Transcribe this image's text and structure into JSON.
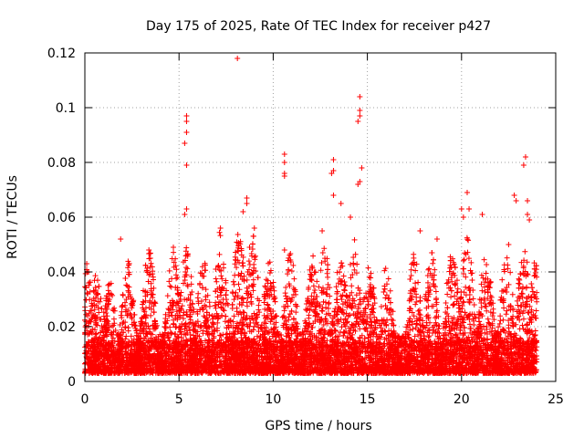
{
  "chart_data": {
    "type": "scatter",
    "title": "Day 175 of 2025, Rate Of TEC Index for receiver p427",
    "xlabel": "GPS time / hours",
    "ylabel": "ROTI / TECUs",
    "xlim": [
      0,
      25
    ],
    "ylim": [
      0,
      0.12
    ],
    "x_ticks": [
      0,
      5,
      10,
      15,
      20,
      25
    ],
    "x_tick_labels": [
      "0",
      "5",
      "10",
      "15",
      "20",
      "25"
    ],
    "y_ticks": [
      0,
      0.02,
      0.04,
      0.06,
      0.08,
      0.1,
      0.12
    ],
    "y_tick_labels": [
      "0",
      "0.02",
      "0.04",
      "0.06",
      "0.08",
      "0.1",
      "0.12"
    ],
    "grid": true,
    "marker": "+",
    "color": "#ff0000",
    "series": [
      {
        "name": "ROTI",
        "description": "dense scatter of ROTI values between ~0.003 and ~0.05 TECU/min from 0 to 24 h",
        "points": [
          [
            8.1,
            0.118
          ],
          [
            14.6,
            0.104
          ],
          [
            14.6,
            0.099
          ],
          [
            14.6,
            0.097
          ],
          [
            14.5,
            0.095
          ],
          [
            5.4,
            0.097
          ],
          [
            5.4,
            0.095
          ],
          [
            5.4,
            0.091
          ],
          [
            5.3,
            0.087
          ],
          [
            5.4,
            0.079
          ],
          [
            10.6,
            0.083
          ],
          [
            10.6,
            0.08
          ],
          [
            10.6,
            0.076
          ],
          [
            10.6,
            0.075
          ],
          [
            13.2,
            0.081
          ],
          [
            13.2,
            0.077
          ],
          [
            13.1,
            0.076
          ],
          [
            13.2,
            0.068
          ],
          [
            14.7,
            0.078
          ],
          [
            14.6,
            0.073
          ],
          [
            14.5,
            0.072
          ],
          [
            23.4,
            0.082
          ],
          [
            23.3,
            0.079
          ],
          [
            23.5,
            0.066
          ],
          [
            20.3,
            0.069
          ],
          [
            22.8,
            0.068
          ],
          [
            22.9,
            0.066
          ],
          [
            8.6,
            0.067
          ],
          [
            8.6,
            0.065
          ],
          [
            8.4,
            0.062
          ],
          [
            20.0,
            0.063
          ],
          [
            20.1,
            0.06
          ],
          [
            20.4,
            0.063
          ],
          [
            5.4,
            0.063
          ],
          [
            5.3,
            0.061
          ],
          [
            13.6,
            0.065
          ],
          [
            14.1,
            0.06
          ],
          [
            23.5,
            0.061
          ],
          [
            23.6,
            0.059
          ],
          [
            21.1,
            0.061
          ],
          [
            1.9,
            0.052
          ],
          [
            7.2,
            0.056
          ],
          [
            9.0,
            0.056
          ],
          [
            12.6,
            0.055
          ],
          [
            17.8,
            0.055
          ],
          [
            18.7,
            0.052
          ],
          [
            10.6,
            0.048
          ],
          [
            4.7,
            0.049
          ],
          [
            0.1,
            0.043
          ],
          [
            0.2,
            0.04
          ],
          [
            3.4,
            0.048
          ],
          [
            22.5,
            0.05
          ]
        ],
        "note": "remaining background density rendered procedurally within the 0.003-0.05 band"
      }
    ]
  }
}
